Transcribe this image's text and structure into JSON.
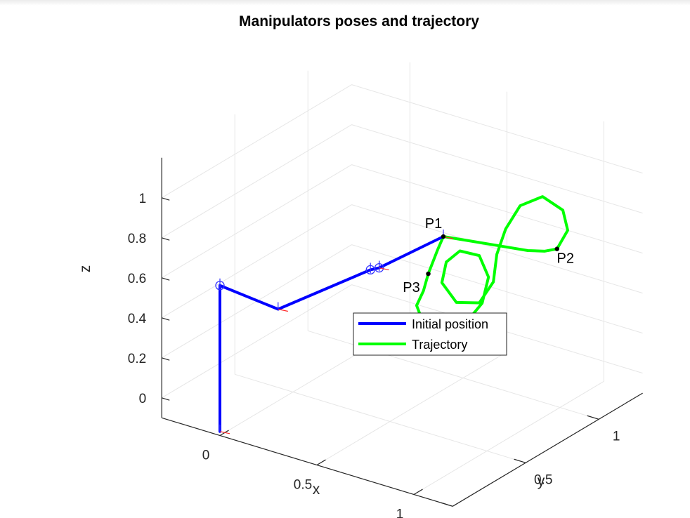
{
  "chart_data": {
    "type": "line",
    "projection": "3d",
    "title": "Manipulators poses and trajectory",
    "xlabel": "x",
    "ylabel": "y",
    "zlabel": "z",
    "xlim": [
      -0.3,
      1.2
    ],
    "ylim": [
      0,
      1.3
    ],
    "zlim": [
      -0.1,
      1.2
    ],
    "xticks": [
      {
        "value": 0,
        "label": "0"
      },
      {
        "value": 0.5,
        "label": "0.5"
      },
      {
        "value": 1,
        "label": "1"
      }
    ],
    "yticks": [
      {
        "value": 0,
        "label": "0"
      },
      {
        "value": 0.5,
        "label": "0.5"
      },
      {
        "value": 1,
        "label": "1"
      }
    ],
    "zticks": [
      {
        "value": 0,
        "label": "0"
      },
      {
        "value": 0.2,
        "label": "0.2"
      },
      {
        "value": 0.4,
        "label": "0.4"
      },
      {
        "value": 0.6,
        "label": "0.6"
      },
      {
        "value": 0.8,
        "label": "0.8"
      },
      {
        "value": 1,
        "label": "1"
      }
    ],
    "grid": true,
    "legend_position": "lower-right inside",
    "series": [
      {
        "name": "Initial position",
        "color": "#0000ff",
        "points": [
          [
            0,
            0,
            -0.08
          ],
          [
            0,
            0,
            0.65
          ],
          [
            0.3,
            0,
            0.62
          ],
          [
            0.55,
            0.3,
            0.76
          ],
          [
            0.58,
            0.32,
            0.77
          ],
          [
            0.7,
            0.6,
            0.84
          ]
        ]
      },
      {
        "name": "Trajectory",
        "color": "#00ff00",
        "points": [
          [
            0.7,
            0.6,
            0.84
          ],
          [
            0.8,
            0.66,
            0.82
          ],
          [
            0.9,
            0.72,
            0.8
          ],
          [
            1.0,
            0.78,
            0.78
          ],
          [
            1.05,
            0.83,
            0.77
          ],
          [
            1.09,
            0.86,
            0.78
          ],
          [
            1.1,
            0.92,
            0.85
          ],
          [
            1.06,
            0.94,
            0.93
          ],
          [
            0.97,
            0.92,
            0.98
          ],
          [
            0.9,
            0.86,
            0.94
          ],
          [
            0.87,
            0.8,
            0.84
          ],
          [
            0.87,
            0.74,
            0.74
          ],
          [
            0.89,
            0.69,
            0.63
          ],
          [
            0.87,
            0.62,
            0.55
          ],
          [
            0.79,
            0.57,
            0.55
          ],
          [
            0.73,
            0.55,
            0.64
          ],
          [
            0.73,
            0.58,
            0.73
          ],
          [
            0.77,
            0.62,
            0.78
          ],
          [
            0.84,
            0.66,
            0.76
          ],
          [
            0.88,
            0.67,
            0.66
          ],
          [
            0.87,
            0.64,
            0.54
          ],
          [
            0.82,
            0.58,
            0.44
          ],
          [
            0.76,
            0.52,
            0.4
          ],
          [
            0.69,
            0.48,
            0.45
          ],
          [
            0.66,
            0.47,
            0.54
          ],
          [
            0.68,
            0.49,
            0.61
          ],
          [
            0.69,
            0.51,
            0.69
          ],
          [
            0.7,
            0.56,
            0.79
          ],
          [
            0.7,
            0.6,
            0.84
          ]
        ]
      }
    ],
    "point_labels": [
      {
        "label": "P1",
        "point": [
          0.7,
          0.6,
          0.84
        ]
      },
      {
        "label": "P2",
        "point": [
          1.09,
          0.86,
          0.78
        ]
      },
      {
        "label": "P3",
        "point": [
          0.69,
          0.51,
          0.69
        ]
      }
    ],
    "joint_markers": [
      [
        0,
        0,
        0.65
      ],
      [
        0.55,
        0.3,
        0.76
      ],
      [
        0.58,
        0.32,
        0.77
      ]
    ],
    "frame_markers": [
      [
        0,
        0,
        -0.08
      ],
      [
        0.3,
        0,
        0.62
      ],
      [
        0.58,
        0.32,
        0.77
      ],
      [
        0.7,
        0.6,
        0.84
      ]
    ]
  }
}
